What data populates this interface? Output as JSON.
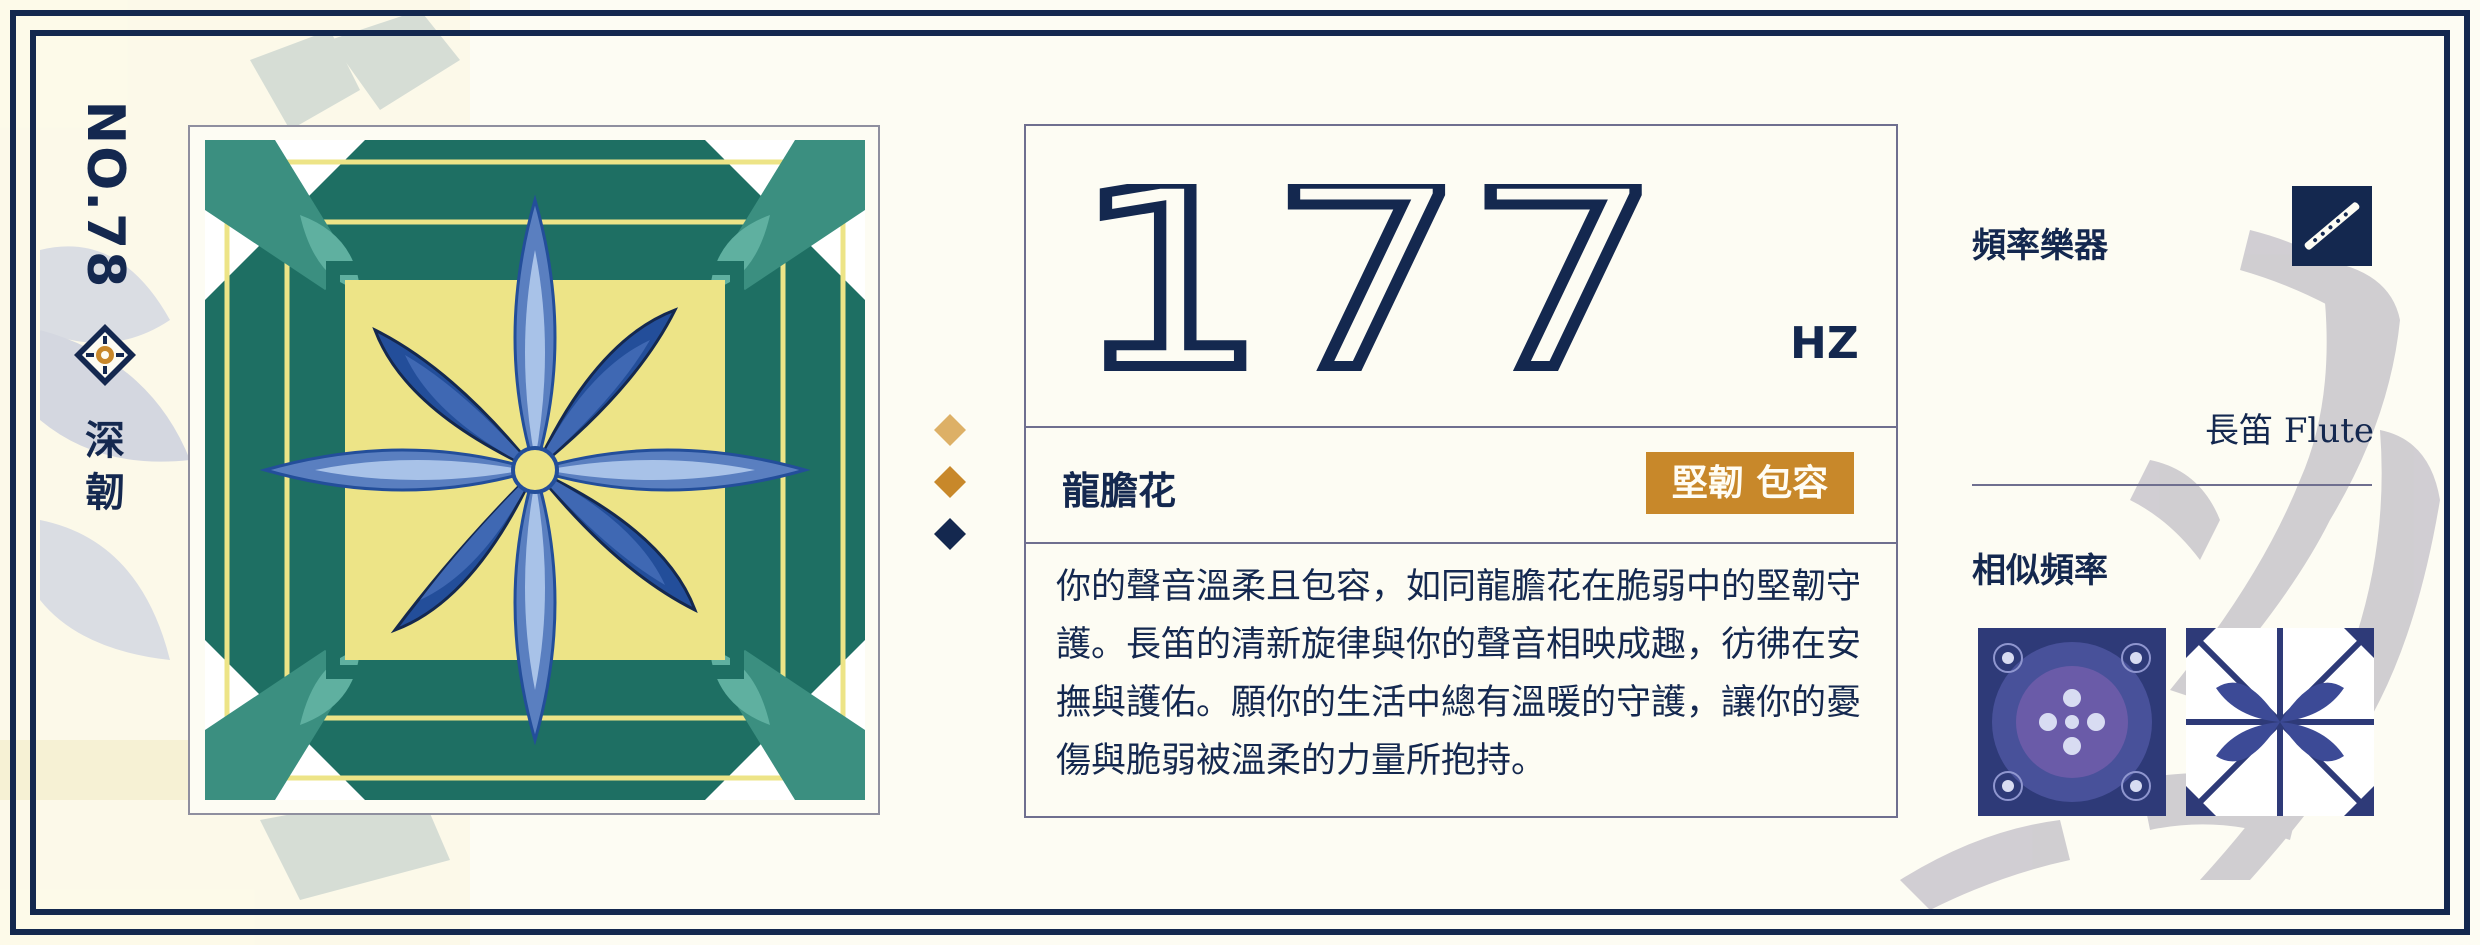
{
  "card": {
    "number": "NO.78",
    "side_word_1": "深",
    "side_word_2": "韌",
    "frequency": "177",
    "unit": "HZ",
    "flower_name": "龍膽花",
    "traits": "堅韌 包容",
    "description": "你的聲音溫柔且包容，如同龍膽花在脆弱中的堅韌守護。長笛的清新旋律與你的聲音相映成趣，彷彿在安撫與護佑。願你的生活中總有溫暖的守護，讓你的憂傷與脆弱被溫柔的力量所抱持。"
  },
  "instrument": {
    "label": "頻率樂器",
    "name": "長笛 Flute",
    "icon": "flute-icon"
  },
  "similar": {
    "label": "相似頻率"
  },
  "colors": {
    "navy": "#14284f",
    "teal": "#1e6f63",
    "yellow": "#ede487",
    "blue": "#5a7fc0",
    "gold": "#c8882a",
    "cream": "#fdfcf3",
    "brush_gray": "#c9c6cc"
  }
}
